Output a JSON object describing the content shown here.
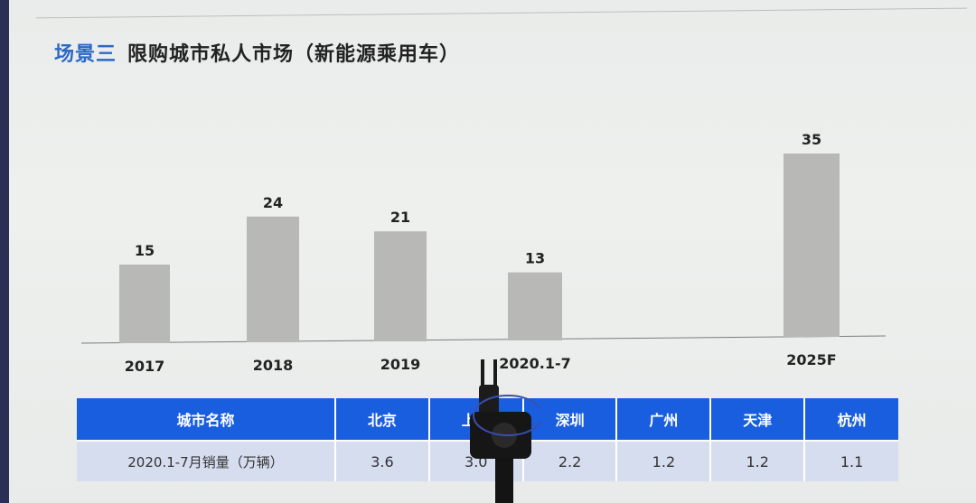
{
  "title": {
    "scene": "场景三",
    "text": "限购城市私人市场（新能源乘用车）"
  },
  "chart_data": {
    "type": "bar",
    "categories": [
      "2017",
      "2018",
      "2019",
      "2020.1-7",
      "2025F"
    ],
    "values": [
      15,
      24,
      21,
      13,
      35
    ],
    "title": "限购城市私人市场（新能源乘用车）",
    "xlabel": "",
    "ylabel": "",
    "ylim": [
      0,
      40
    ],
    "grid": false
  },
  "table": {
    "headers": [
      "城市名称",
      "北京",
      "上海",
      "深圳",
      "广州",
      "天津",
      "杭州"
    ],
    "row": [
      "2020.1-7月销量（万辆）",
      "3.6",
      "3.0",
      "2.2",
      "1.2",
      "1.2",
      "1.1"
    ]
  },
  "colors": {
    "accent": "#2d68c4",
    "bar": "#b8b8b6",
    "table_header": "#1a5ee0",
    "table_row": "#d5ddef"
  }
}
